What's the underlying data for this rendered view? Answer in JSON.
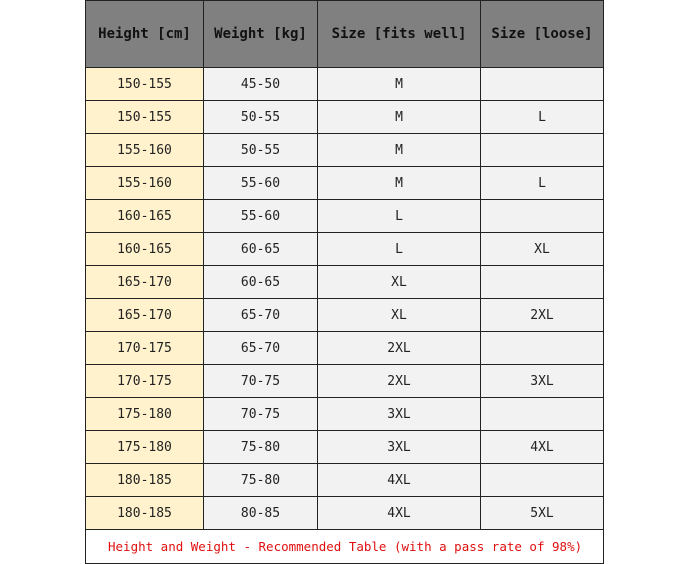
{
  "headers": [
    "Height [cm]",
    "Weight [kg]",
    "Size [fits well]",
    "Size [loose]"
  ],
  "rows": [
    [
      "150-155",
      "45-50",
      "M",
      ""
    ],
    [
      "150-155",
      "50-55",
      "M",
      "L"
    ],
    [
      "155-160",
      "50-55",
      "M",
      ""
    ],
    [
      "155-160",
      "55-60",
      "M",
      "L"
    ],
    [
      "160-165",
      "55-60",
      "L",
      ""
    ],
    [
      "160-165",
      "60-65",
      "L",
      "XL"
    ],
    [
      "165-170",
      "60-65",
      "XL",
      ""
    ],
    [
      "165-170",
      "65-70",
      "XL",
      "2XL"
    ],
    [
      "170-175",
      "65-70",
      "2XL",
      ""
    ],
    [
      "170-175",
      "70-75",
      "2XL",
      "3XL"
    ],
    [
      "175-180",
      "70-75",
      "3XL",
      ""
    ],
    [
      "175-180",
      "75-80",
      "3XL",
      "4XL"
    ],
    [
      "180-185",
      "75-80",
      "4XL",
      ""
    ],
    [
      "180-185",
      "80-85",
      "4XL",
      "5XL"
    ]
  ],
  "footer": "Height and Weight - Recommended Table (with a pass rate of 98%)",
  "colors": {
    "header_bg": "#808080",
    "height_col_bg": "#fff2cc",
    "cell_bg": "#f2f2f2",
    "footer_text": "#e01010"
  }
}
